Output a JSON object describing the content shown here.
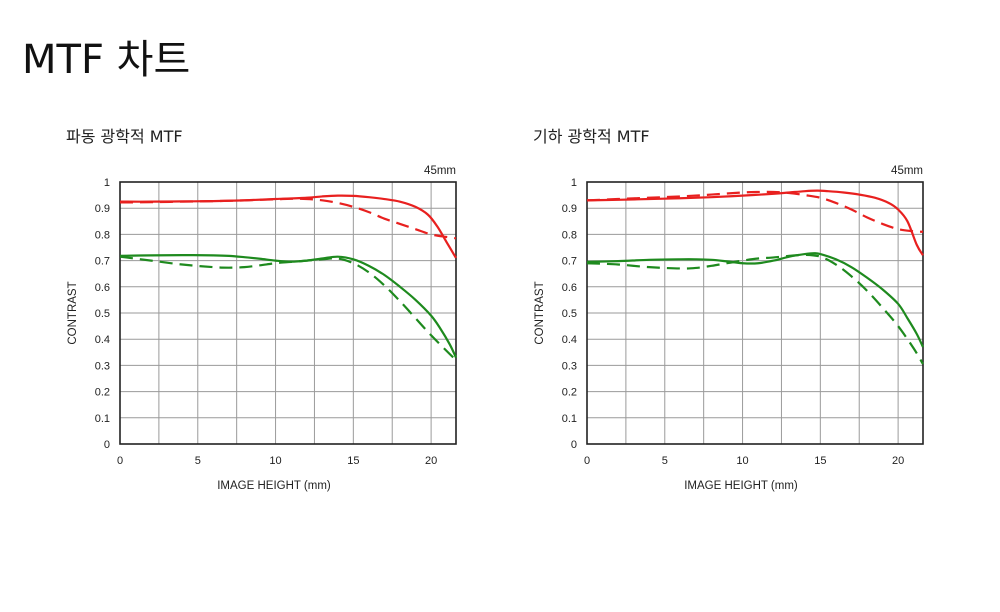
{
  "page": {
    "title": "MTF 차트"
  },
  "chart_data": [
    {
      "type": "line",
      "title": "파동 광학적 MTF",
      "subtitle": "45mm",
      "xlabel": "IMAGE HEIGHT (mm)",
      "ylabel": "CONTRAST",
      "xlim": [
        0,
        21.6
      ],
      "ylim": [
        0,
        1
      ],
      "x_ticks": [
        "0",
        "5",
        "10",
        "15",
        "20"
      ],
      "y_ticks": [
        "0",
        "0.1",
        "0.2",
        "0.3",
        "0.4",
        "0.5",
        "0.6",
        "0.7",
        "0.8",
        "0.9",
        "1"
      ],
      "grid": true,
      "colors": {
        "red": "#e8201f",
        "green": "#1e8a1e"
      },
      "series": [
        {
          "color": "#e8201f",
          "style": "solid",
          "x": [
            0,
            2,
            4,
            6,
            8,
            10,
            12,
            13,
            14,
            15,
            16,
            17,
            18,
            19,
            19.8,
            20.4,
            21,
            21.6
          ],
          "y": [
            0.925,
            0.925,
            0.926,
            0.927,
            0.93,
            0.935,
            0.94,
            0.945,
            0.948,
            0.947,
            0.942,
            0.935,
            0.925,
            0.905,
            0.875,
            0.83,
            0.77,
            0.71
          ]
        },
        {
          "color": "#e8201f",
          "style": "dashed",
          "x": [
            0,
            2,
            4,
            6,
            8,
            10,
            11,
            12,
            13,
            14,
            15,
            16,
            17,
            18,
            19,
            20,
            21,
            21.6
          ],
          "y": [
            0.922,
            0.923,
            0.925,
            0.927,
            0.93,
            0.934,
            0.936,
            0.935,
            0.93,
            0.92,
            0.905,
            0.885,
            0.86,
            0.84,
            0.82,
            0.8,
            0.79,
            0.785
          ]
        },
        {
          "color": "#1e8a1e",
          "style": "solid",
          "x": [
            0,
            2,
            4,
            6,
            7,
            8,
            9,
            10,
            11,
            12,
            13,
            14,
            15,
            16,
            17,
            18,
            19,
            20,
            20.6,
            21.2,
            21.6
          ],
          "y": [
            0.718,
            0.72,
            0.721,
            0.72,
            0.718,
            0.713,
            0.707,
            0.7,
            0.696,
            0.7,
            0.708,
            0.715,
            0.705,
            0.68,
            0.645,
            0.6,
            0.55,
            0.49,
            0.44,
            0.38,
            0.33
          ]
        },
        {
          "color": "#1e8a1e",
          "style": "dashed",
          "x": [
            0,
            2,
            4,
            6,
            7,
            8,
            9,
            10,
            11,
            12,
            13,
            14,
            15,
            16,
            17,
            18,
            19,
            20,
            21,
            21.6
          ],
          "y": [
            0.715,
            0.7,
            0.685,
            0.675,
            0.673,
            0.675,
            0.682,
            0.69,
            0.695,
            0.7,
            0.705,
            0.708,
            0.69,
            0.655,
            0.605,
            0.545,
            0.48,
            0.415,
            0.355,
            0.32
          ]
        }
      ]
    },
    {
      "type": "line",
      "title": "기하 광학적 MTF",
      "subtitle": "45mm",
      "xlabel": "IMAGE HEIGHT (mm)",
      "ylabel": "CONTRAST",
      "xlim": [
        0,
        21.6
      ],
      "ylim": [
        0,
        1
      ],
      "x_ticks": [
        "0",
        "5",
        "10",
        "15",
        "20"
      ],
      "y_ticks": [
        "0",
        "0.1",
        "0.2",
        "0.3",
        "0.4",
        "0.5",
        "0.6",
        "0.7",
        "0.8",
        "0.9",
        "1"
      ],
      "grid": true,
      "colors": {
        "red": "#e8201f",
        "green": "#1e8a1e"
      },
      "series": [
        {
          "color": "#e8201f",
          "style": "solid",
          "x": [
            0,
            2,
            4,
            6,
            8,
            10,
            12,
            13,
            14,
            14.8,
            15.5,
            16.5,
            17.5,
            18.5,
            19.4,
            20,
            20.6,
            21.2,
            21.6
          ],
          "y": [
            0.93,
            0.932,
            0.935,
            0.938,
            0.942,
            0.948,
            0.955,
            0.96,
            0.965,
            0.967,
            0.965,
            0.96,
            0.952,
            0.94,
            0.92,
            0.895,
            0.85,
            0.76,
            0.72
          ]
        },
        {
          "color": "#e8201f",
          "style": "dashed",
          "x": [
            0,
            2,
            4,
            6,
            8,
            10,
            11,
            12,
            13,
            14,
            15,
            16,
            17,
            18,
            19,
            20,
            21,
            21.6
          ],
          "y": [
            0.93,
            0.935,
            0.94,
            0.945,
            0.952,
            0.96,
            0.962,
            0.962,
            0.958,
            0.95,
            0.94,
            0.92,
            0.895,
            0.865,
            0.84,
            0.82,
            0.812,
            0.81
          ]
        },
        {
          "color": "#1e8a1e",
          "style": "solid",
          "x": [
            0,
            2,
            4,
            6,
            7,
            8,
            9,
            10,
            11,
            12,
            13,
            14,
            14.6,
            15,
            16,
            17,
            18,
            19,
            20,
            20.6,
            21.2,
            21.6
          ],
          "y": [
            0.695,
            0.698,
            0.703,
            0.705,
            0.705,
            0.703,
            0.697,
            0.69,
            0.69,
            0.7,
            0.715,
            0.725,
            0.728,
            0.725,
            0.705,
            0.675,
            0.635,
            0.59,
            0.535,
            0.48,
            0.42,
            0.37
          ]
        },
        {
          "color": "#1e8a1e",
          "style": "dashed",
          "x": [
            0,
            2,
            4,
            6,
            7,
            8,
            9,
            10,
            11,
            12,
            13,
            14,
            15,
            16,
            17,
            18,
            19,
            20,
            21,
            21.6
          ],
          "y": [
            0.69,
            0.685,
            0.675,
            0.67,
            0.672,
            0.68,
            0.69,
            0.7,
            0.708,
            0.712,
            0.718,
            0.722,
            0.715,
            0.685,
            0.64,
            0.585,
            0.52,
            0.45,
            0.365,
            0.305
          ]
        }
      ]
    }
  ]
}
